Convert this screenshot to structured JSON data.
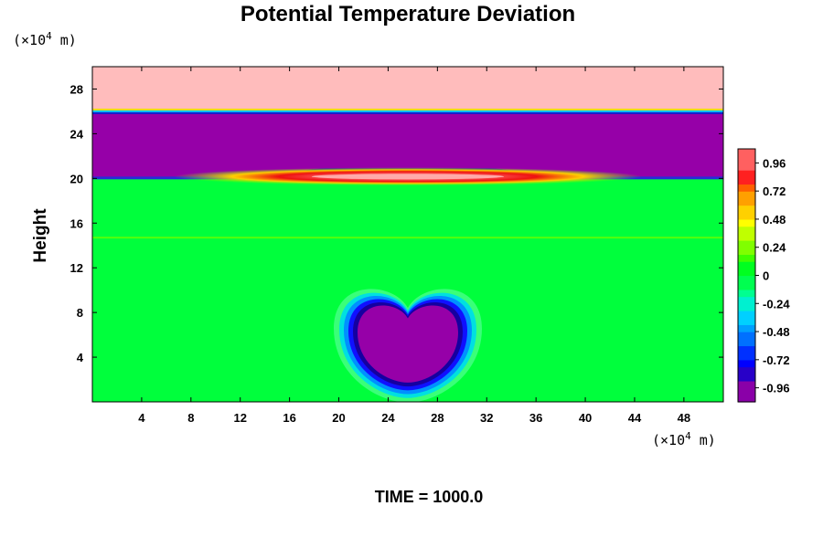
{
  "chart_data": {
    "type": "heatmap",
    "title": "Potential Temperature Deviation",
    "ylabel": "Height",
    "x_unit": "(×10",
    "x_unit_exp": "4",
    "x_unit_end": " m)",
    "y_unit": "(×10",
    "y_unit_exp": "4",
    "y_unit_end": " m)",
    "xlim": [
      0,
      51.2
    ],
    "ylim": [
      0,
      30
    ],
    "x_ticks": [
      "4",
      "8",
      "12",
      "16",
      "20",
      "24",
      "28",
      "32",
      "36",
      "40",
      "44",
      "48"
    ],
    "y_ticks": [
      "4",
      "8",
      "12",
      "16",
      "20",
      "24",
      "28"
    ],
    "x_tick_values": [
      4,
      8,
      12,
      16,
      20,
      24,
      28,
      32,
      36,
      40,
      44,
      48
    ],
    "y_tick_values": [
      4,
      8,
      12,
      16,
      20,
      24,
      28
    ],
    "colorbar_labels": [
      "0.96",
      "0.72",
      "0.48",
      "0.24",
      "0",
      "-0.24",
      "-0.48",
      "-0.72",
      "-0.96"
    ],
    "colorbar_values": [
      0.96,
      0.72,
      0.48,
      0.24,
      0,
      -0.24,
      -0.48,
      -0.72,
      -0.96
    ],
    "colorbar_range": [
      -1.08,
      1.08
    ],
    "time_label": "TIME = 1000.0",
    "regions": [
      {
        "name": "upper layer",
        "y_range": [
          26,
          30
        ],
        "value": 1.0
      },
      {
        "name": "middle layer",
        "y_range": [
          20,
          26
        ],
        "value": -1.0
      },
      {
        "name": "lower layer",
        "y_range": [
          0,
          20
        ],
        "value": 0.0
      },
      {
        "name": "warm anomaly",
        "x_center": 25.6,
        "y_center": 20,
        "value": 0.9
      },
      {
        "name": "cold bubble",
        "x_center": 25.6,
        "y_center": 5,
        "value": -1.0
      }
    ]
  }
}
